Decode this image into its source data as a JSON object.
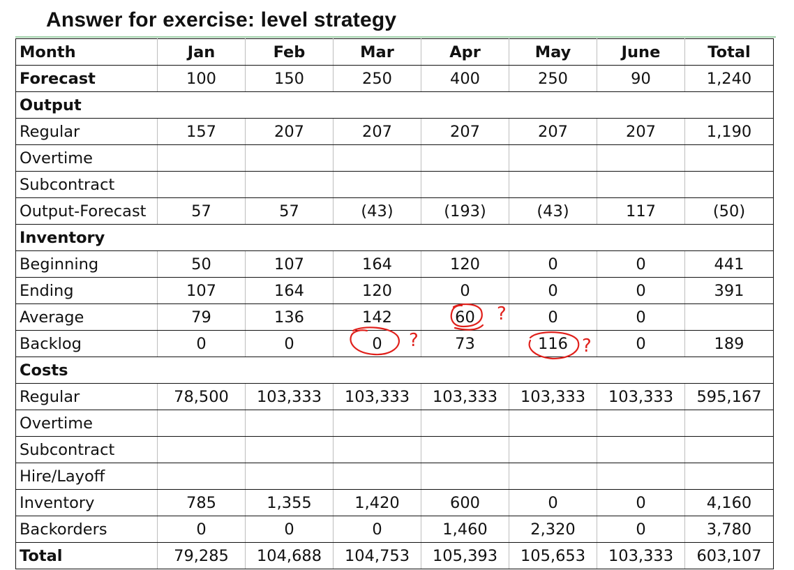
{
  "title": "Answer for exercise: level strategy",
  "header": [
    "Month",
    "Jan",
    "Feb",
    "Mar",
    "Apr",
    "May",
    "June",
    "Total"
  ],
  "rows": [
    {
      "type": "data",
      "bold": true,
      "name": "forecast-row",
      "label": "Forecast",
      "values": [
        "100",
        "150",
        "250",
        "400",
        "250",
        "90",
        "1,240"
      ]
    },
    {
      "type": "section",
      "name": "section-output",
      "label": "Output"
    },
    {
      "type": "data",
      "name": "output-regular-row",
      "label": "Regular",
      "values": [
        "157",
        "207",
        "207",
        "207",
        "207",
        "207",
        "1,190"
      ]
    },
    {
      "type": "data",
      "name": "output-overtime-row",
      "label": "Overtime",
      "values": [
        "",
        "",
        "",
        "",
        "",
        "",
        ""
      ]
    },
    {
      "type": "data",
      "name": "output-subcontract-row",
      "label": "Subcontract",
      "values": [
        "",
        "",
        "",
        "",
        "",
        "",
        ""
      ]
    },
    {
      "type": "data",
      "name": "output-forecast-row",
      "label": "Output-Forecast",
      "values": [
        "57",
        "57",
        "(43)",
        "(193)",
        "(43)",
        "117",
        "(50)"
      ]
    },
    {
      "type": "section",
      "name": "section-inventory",
      "label": "Inventory"
    },
    {
      "type": "data",
      "name": "inventory-beginning-row",
      "label": "Beginning",
      "values": [
        "50",
        "107",
        "164",
        "120",
        "0",
        "0",
        "441"
      ]
    },
    {
      "type": "data",
      "name": "inventory-ending-row",
      "label": "Ending",
      "values": [
        "107",
        "164",
        "120",
        "0",
        "0",
        "0",
        "391"
      ]
    },
    {
      "type": "data",
      "name": "inventory-average-row",
      "label": "Average",
      "values": [
        "79",
        "136",
        "142",
        "60",
        "0",
        "0",
        ""
      ]
    },
    {
      "type": "data",
      "name": "inventory-backlog-row",
      "label": "Backlog",
      "values": [
        "0",
        "0",
        "0",
        "73",
        "116",
        "0",
        "189"
      ]
    },
    {
      "type": "section",
      "name": "section-costs",
      "label": "Costs"
    },
    {
      "type": "data",
      "name": "cost-regular-row",
      "label": "Regular",
      "values": [
        "78,500",
        "103,333",
        "103,333",
        "103,333",
        "103,333",
        "103,333",
        "595,167"
      ]
    },
    {
      "type": "data",
      "name": "cost-overtime-row",
      "label": "Overtime",
      "values": [
        "",
        "",
        "",
        "",
        "",
        "",
        ""
      ]
    },
    {
      "type": "data",
      "name": "cost-subcontract-row",
      "label": "Subcontract",
      "values": [
        "",
        "",
        "",
        "",
        "",
        "",
        ""
      ]
    },
    {
      "type": "data",
      "name": "cost-hire-layoff-row",
      "label": "Hire/Layoff",
      "values": [
        "",
        "",
        "",
        "",
        "",
        "",
        ""
      ]
    },
    {
      "type": "data",
      "name": "cost-inventory-row",
      "label": "Inventory",
      "values": [
        "785",
        "1,355",
        "1,420",
        "600",
        "0",
        "0",
        "4,160"
      ]
    },
    {
      "type": "data",
      "name": "cost-backorders-row",
      "label": "Backorders",
      "values": [
        "0",
        "0",
        "0",
        "1,460",
        "2,320",
        "0",
        "3,780"
      ]
    },
    {
      "type": "data",
      "bold": true,
      "name": "total-row",
      "label": "Total",
      "values": [
        "79,285",
        "104,688",
        "104,753",
        "105,393",
        "105,653",
        "103,333",
        "603,107"
      ]
    }
  ],
  "annotations": {
    "mark": "?",
    "color": "#e0201b"
  }
}
